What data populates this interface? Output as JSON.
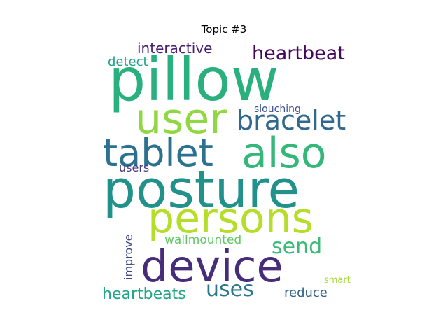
{
  "chart_data": {
    "type": "wordcloud",
    "title": "Topic #3",
    "words": [
      {
        "text": "pillow",
        "color": "#2ab07f"
      },
      {
        "text": "user",
        "color": "#90d743"
      },
      {
        "text": "also",
        "color": "#35b779"
      },
      {
        "text": "tablet",
        "color": "#2c728e"
      },
      {
        "text": "posture",
        "color": "#21918c"
      },
      {
        "text": "persons",
        "color": "#b5de2b"
      },
      {
        "text": "device",
        "color": "#472c7a"
      },
      {
        "text": "bracelet",
        "color": "#31688e"
      },
      {
        "text": "heartbeat",
        "color": "#46085c"
      },
      {
        "text": "interactive",
        "color": "#481f70"
      },
      {
        "text": "detect",
        "color": "#1fa187"
      },
      {
        "text": "send",
        "color": "#3bbb75"
      },
      {
        "text": "uses",
        "color": "#2a788e"
      },
      {
        "text": "heartbeats",
        "color": "#22a785"
      },
      {
        "text": "wallmounted",
        "color": "#5ec962"
      },
      {
        "text": "reduce",
        "color": "#33638d"
      },
      {
        "text": "slouching",
        "color": "#3b528b"
      },
      {
        "text": "users",
        "color": "#443983"
      },
      {
        "text": "improve",
        "color": "#3e4a89"
      },
      {
        "text": "smart",
        "color": "#a5db36"
      }
    ]
  }
}
